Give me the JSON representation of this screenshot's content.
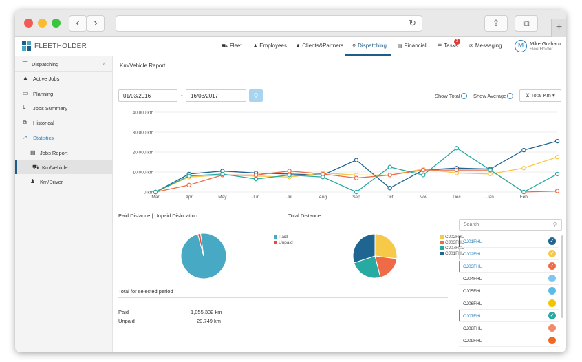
{
  "app": {
    "logo_text": "FLEETHOLDER",
    "nav": [
      {
        "label": "Fleet",
        "icon": "truck-icon",
        "glyph": "⛟"
      },
      {
        "label": "Employees",
        "icon": "person-icon",
        "glyph": "♟"
      },
      {
        "label": "Clients&Partners",
        "icon": "person-icon",
        "glyph": "♟"
      },
      {
        "label": "Dispatching",
        "icon": "antenna-icon",
        "glyph": "⚲"
      },
      {
        "label": "Financial",
        "icon": "line-chart-icon",
        "glyph": "▤"
      },
      {
        "label": "Tasks",
        "icon": "list-icon",
        "glyph": "☰"
      },
      {
        "label": "Messaging",
        "icon": "chat-icon",
        "glyph": "✉"
      }
    ],
    "tasks_badge": "3",
    "user": {
      "initial": "M",
      "name": "Mike Graham",
      "company": "FleetHolder"
    }
  },
  "sidebar": {
    "header": "Dispatching",
    "items": [
      {
        "label": "Active Jobs",
        "glyph": "▲",
        "icon": "road-icon"
      },
      {
        "label": "Planning",
        "glyph": "▭",
        "icon": "monitor-icon"
      },
      {
        "label": "Jobs Summary",
        "glyph": "#",
        "icon": "hash-icon"
      },
      {
        "label": "Historical",
        "glyph": "⧉",
        "icon": "history-icon"
      },
      {
        "label": "Statistics",
        "glyph": "↗",
        "icon": "area-chart-icon"
      },
      {
        "label": "Jobs Report",
        "glyph": "▤",
        "icon": "list-icon"
      },
      {
        "label": "Km/Vehicle",
        "glyph": "⛟",
        "icon": "truck-icon"
      },
      {
        "label": "Km/Driver",
        "glyph": "♟",
        "icon": "driver-icon"
      }
    ]
  },
  "report": {
    "title": "Km/Vehicle Report",
    "date_from": "01/03/2016",
    "date_sep": "-",
    "date_to": "16/03/2017",
    "show_total": "Show Total",
    "show_average": "Show Average",
    "metric_button": "Total Km"
  },
  "chart_data": [
    {
      "type": "line",
      "title": "",
      "categories": [
        "Mar",
        "Apr",
        "May",
        "Jun",
        "Jul",
        "Aug",
        "Sep",
        "Oct",
        "Nov",
        "Dec",
        "Jan",
        "Feb",
        ""
      ],
      "y_ticks": [
        "40.000 km",
        "30.000 km",
        "20.000 km",
        "10.000 km",
        "0 km"
      ],
      "ylim": [
        0,
        40000
      ],
      "grid": true,
      "series": [
        {
          "name": "CJ01FHL",
          "color": "#1e6591",
          "values": [
            0,
            9000,
            10500,
            9500,
            9000,
            8500,
            16000,
            2000,
            11000,
            12000,
            11500,
            21000,
            25500
          ]
        },
        {
          "name": "CJ02FHL",
          "color": "#f7c948",
          "values": [
            0,
            7500,
            8500,
            8000,
            7500,
            9500,
            8500,
            8500,
            11500,
            9500,
            9000,
            12000,
            17500
          ]
        },
        {
          "name": "CJ03FHL",
          "color": "#ef6a47",
          "values": [
            0,
            3500,
            8500,
            8500,
            10500,
            9000,
            7000,
            8500,
            11000,
            11000,
            11000,
            0,
            500
          ]
        },
        {
          "name": "CJ07FHL",
          "color": "#27aaa1",
          "values": [
            0,
            8000,
            9000,
            6500,
            8500,
            7500,
            0,
            12500,
            8500,
            22000,
            11000,
            0,
            9000
          ]
        }
      ]
    },
    {
      "type": "pie",
      "title": "Paid Distance | Unpaid Dislocation",
      "labels": [
        "Paid",
        "Unpaid"
      ],
      "values": [
        1055332,
        20749
      ],
      "colors": [
        "#48a9c5",
        "#e84c3d"
      ]
    },
    {
      "type": "pie",
      "title": "Total Distance",
      "labels": [
        "CJ02FHL",
        "CJ03FHL",
        "CJ07FHL",
        "CJ01FHL"
      ],
      "values": [
        27,
        19,
        24,
        30
      ],
      "colors": [
        "#f7c948",
        "#ef6a47",
        "#27aaa1",
        "#1e6591"
      ]
    }
  ],
  "totals": {
    "title": "Total for selected period",
    "paid_label": "Paid",
    "paid_value": "1,055,332 km",
    "unpaid_label": "Unpaid",
    "unpaid_value": "20,749 km"
  },
  "vehicles": {
    "search_placeholder": "Search",
    "items": [
      {
        "name": "CJ01FHL",
        "color": "#1e6591",
        "checked": true
      },
      {
        "name": "CJ02FHL",
        "color": "#f7c948",
        "checked": true
      },
      {
        "name": "CJ03FHL",
        "color": "#ef6a47",
        "checked": true
      },
      {
        "name": "CJ04FHL",
        "color": "#7cc8ef",
        "checked": false
      },
      {
        "name": "CJ05FHL",
        "color": "#5bbbe8",
        "checked": false
      },
      {
        "name": "CJ06FHL",
        "color": "#f5c400",
        "checked": false
      },
      {
        "name": "CJ07FHL",
        "color": "#27aaa1",
        "checked": true
      },
      {
        "name": "CJ08FHL",
        "color": "#f08b6a",
        "checked": false
      },
      {
        "name": "CJ09FHL",
        "color": "#f4671f",
        "checked": false
      }
    ]
  }
}
